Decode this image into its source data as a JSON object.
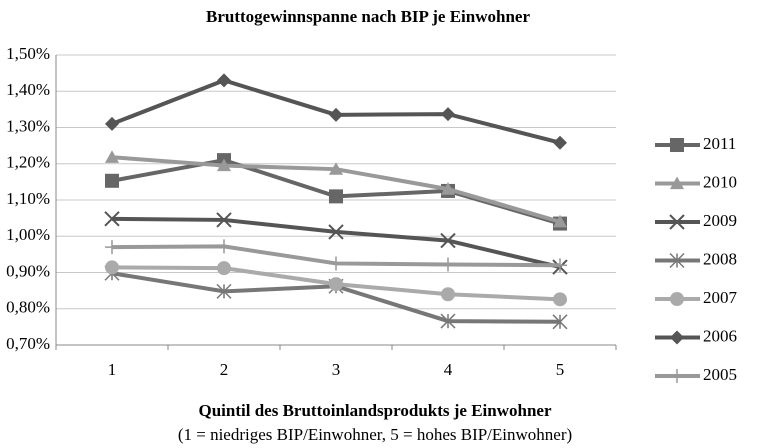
{
  "chart_data": {
    "type": "line",
    "title": "Bruttogewinnspanne nach BIP je Einwohner",
    "xlabel": "Quintil des Bruttoinlandsprodukts je Einwohner",
    "xlabel_note": "(1 = niedriges BIP/Einwohner, 5 = hohes BIP/Einwohner)",
    "categories": [
      "1",
      "2",
      "3",
      "4",
      "5"
    ],
    "ylim": [
      0.7,
      1.5
    ],
    "yticks": [
      {
        "value": 0.7,
        "label": "0,70%"
      },
      {
        "value": 0.8,
        "label": "0,80%"
      },
      {
        "value": 0.9,
        "label": "0,90%"
      },
      {
        "value": 1.0,
        "label": "1,00%"
      },
      {
        "value": 1.1,
        "label": "1,10%"
      },
      {
        "value": 1.2,
        "label": "1,20%"
      },
      {
        "value": 1.3,
        "label": "1,30%"
      },
      {
        "value": 1.4,
        "label": "1,40%"
      },
      {
        "value": 1.5,
        "label": "1,50%"
      }
    ],
    "grid": true,
    "legend": "right",
    "series": [
      {
        "name": "2011",
        "color": "#666666",
        "marker": "square",
        "values": [
          1.153,
          1.21,
          1.11,
          1.125,
          1.035
        ]
      },
      {
        "name": "2010",
        "color": "#999999",
        "marker": "triangle",
        "values": [
          1.218,
          1.195,
          1.185,
          1.13,
          1.04
        ]
      },
      {
        "name": "2009",
        "color": "#555555",
        "marker": "x",
        "values": [
          1.048,
          1.045,
          1.012,
          0.988,
          0.915
        ]
      },
      {
        "name": "2008",
        "color": "#777777",
        "marker": "star",
        "values": [
          0.898,
          0.848,
          0.862,
          0.766,
          0.764
        ]
      },
      {
        "name": "2007",
        "color": "#aaaaaa",
        "marker": "circle",
        "values": [
          0.914,
          0.912,
          0.868,
          0.84,
          0.826
        ]
      },
      {
        "name": "2006",
        "color": "#555555",
        "marker": "diamond",
        "values": [
          1.31,
          1.43,
          1.335,
          1.337,
          1.258
        ]
      },
      {
        "name": "2005",
        "color": "#999999",
        "marker": "plus",
        "values": [
          0.97,
          0.972,
          0.925,
          0.922,
          0.92
        ]
      }
    ]
  }
}
